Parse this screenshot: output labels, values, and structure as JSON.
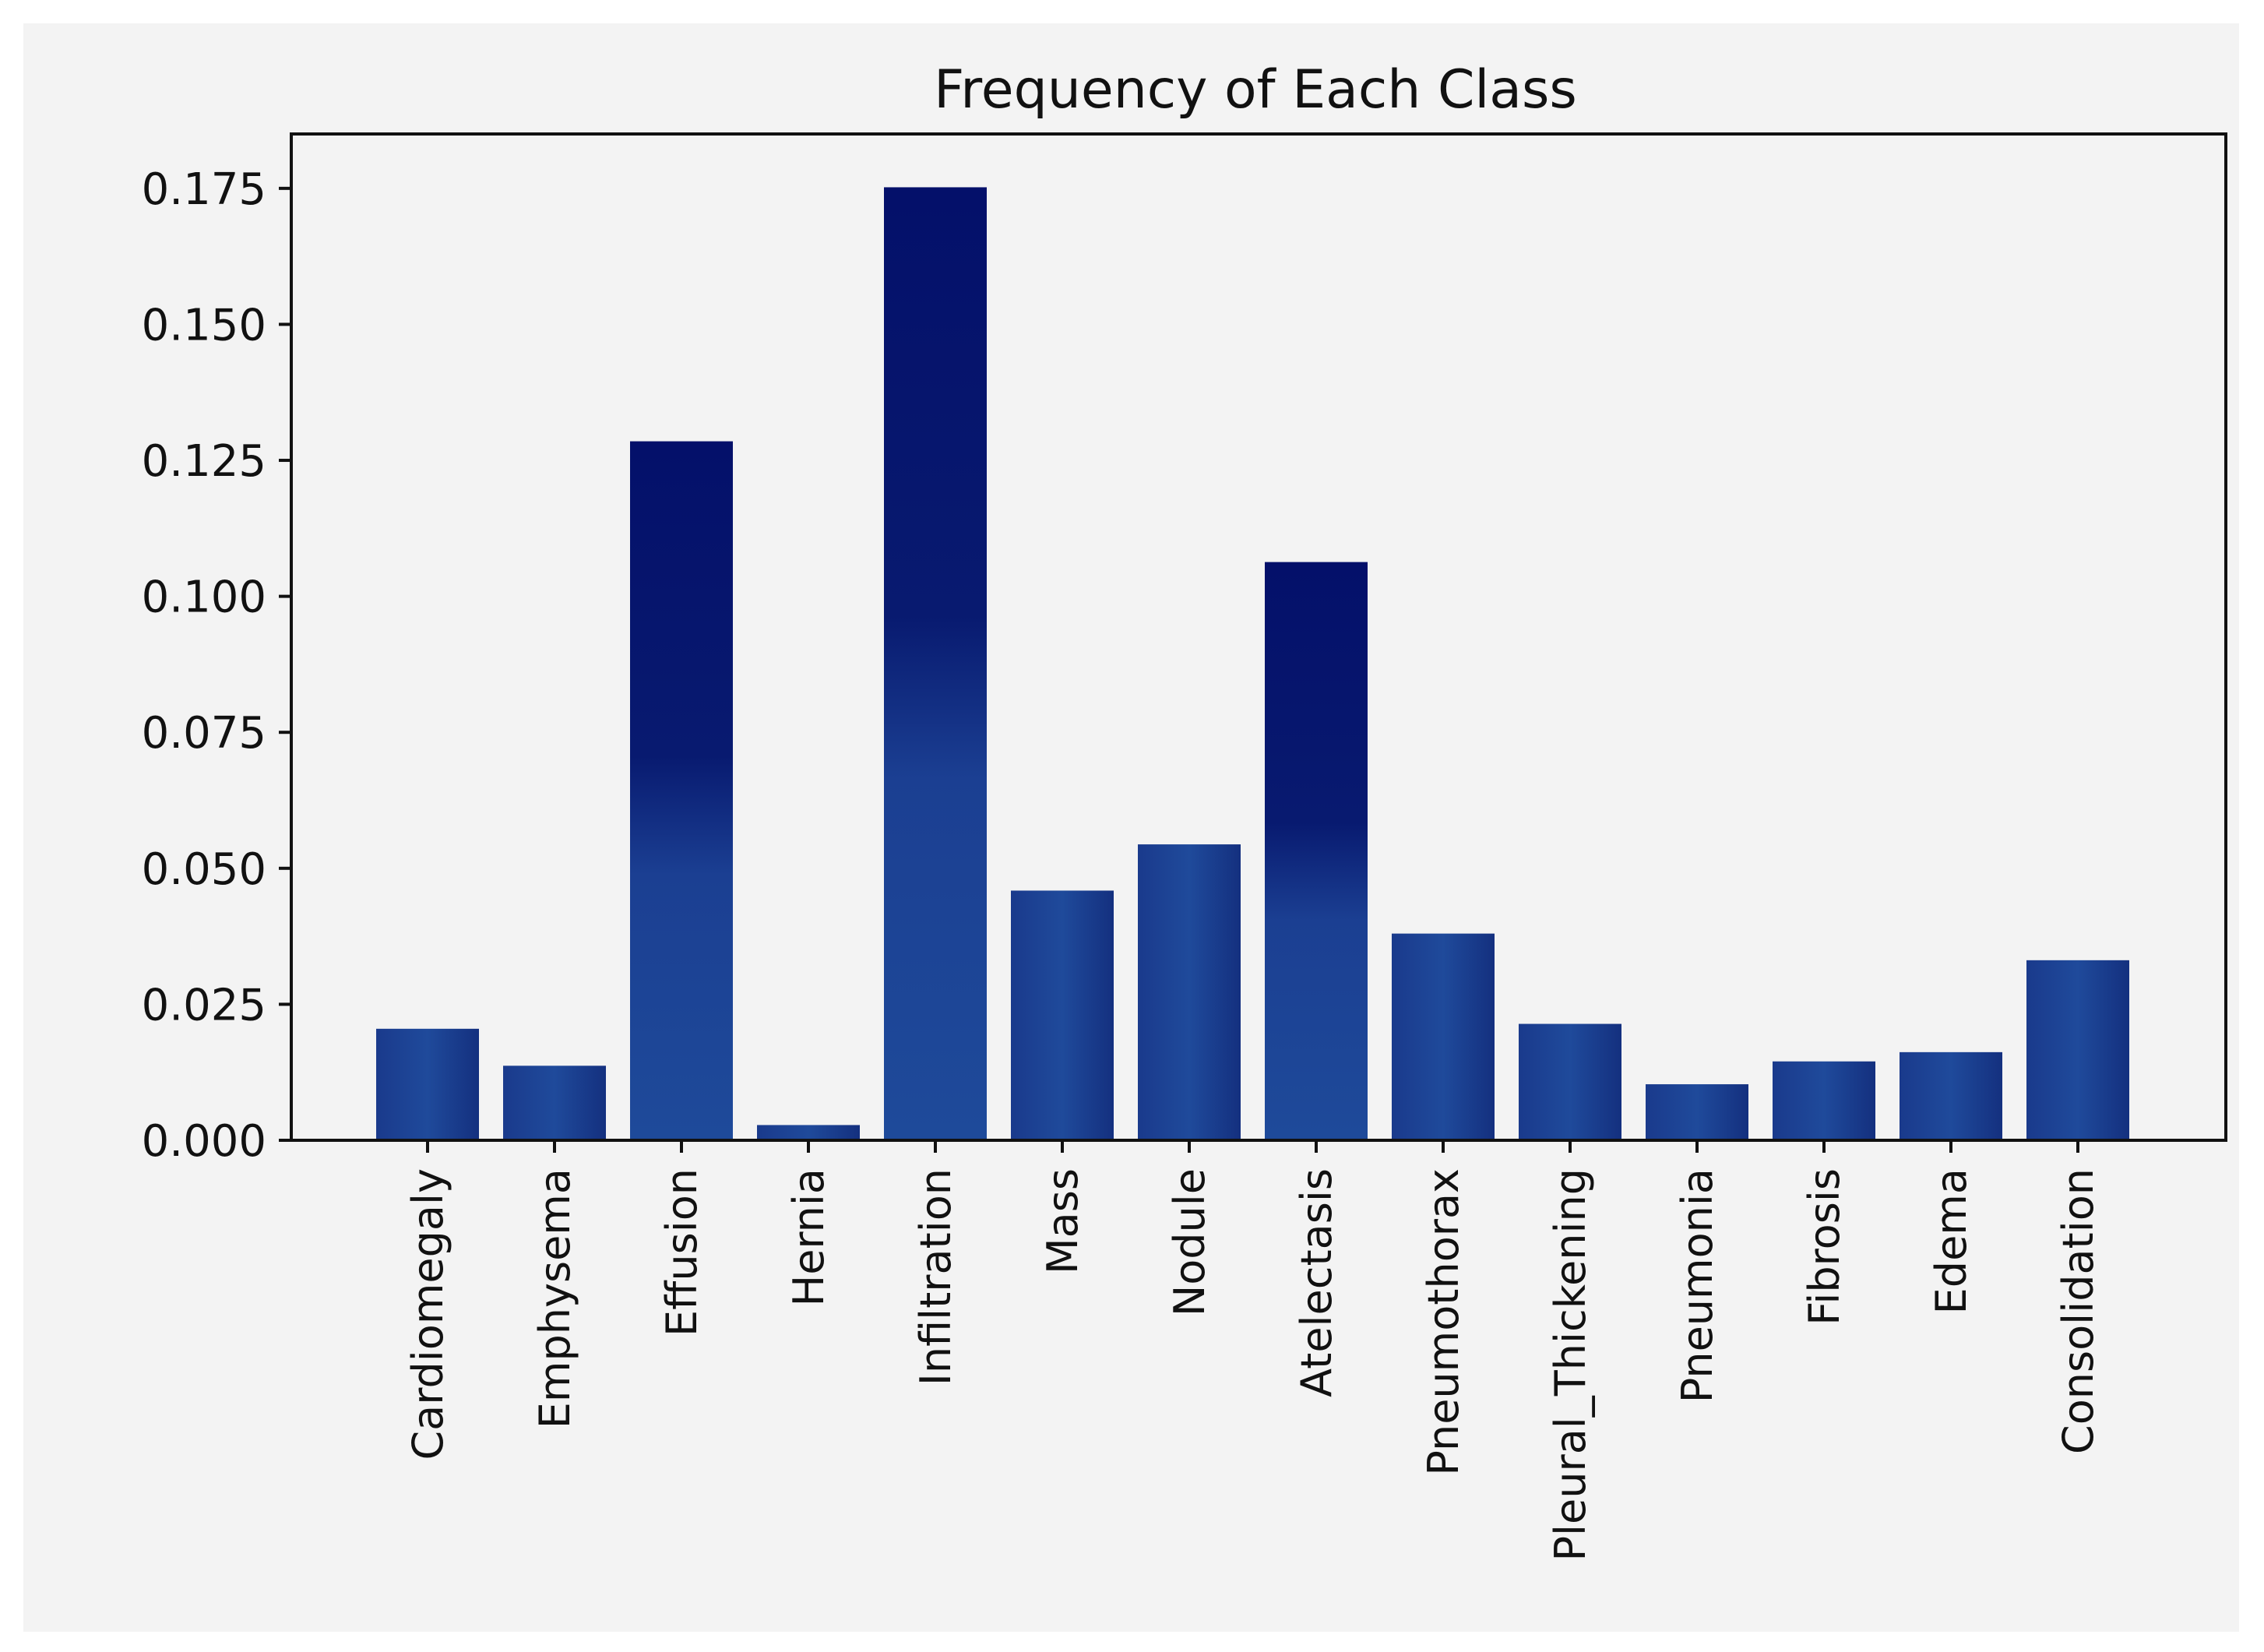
{
  "chart_data": {
    "type": "bar",
    "title": "Frequency of Each Class",
    "xlabel": "",
    "ylabel": "",
    "ylim": [
      0,
      0.185
    ],
    "yticks": [
      "0.000",
      "0.025",
      "0.050",
      "0.075",
      "0.100",
      "0.125",
      "0.150",
      "0.175"
    ],
    "categories": [
      "Cardiomegaly",
      "Emphysema",
      "Effusion",
      "Hernia",
      "Infiltration",
      "Mass",
      "Nodule",
      "Atelectasis",
      "Pneumothorax",
      "Pleural_Thickening",
      "Pneumonia",
      "Fibrosis",
      "Edema",
      "Consolidation"
    ],
    "values": [
      0.0205,
      0.0137,
      0.1285,
      0.0028,
      0.1752,
      0.0459,
      0.0544,
      0.1063,
      0.038,
      0.0214,
      0.0103,
      0.0145,
      0.0162,
      0.0331
    ],
    "grid": false,
    "colors": {
      "bar_dark": "#0a1a6e",
      "bar_light": "#1e4a9a",
      "axis": "#111111",
      "background": "#f3f3f3"
    }
  }
}
